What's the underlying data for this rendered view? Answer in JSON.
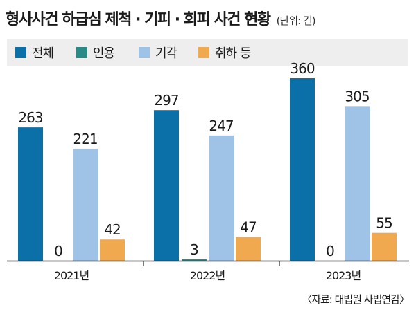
{
  "title": "형사사건 하급심 제척 · 기피 · 회피 사건 현황",
  "unit": "(단위: 건)",
  "source": "〈자료: 대법원 사법연감〉",
  "colors": {
    "전체": "#0b6fa8",
    "인용": "#2a8a86",
    "기각": "#9ec3e6",
    "취하 등": "#f0a94e"
  },
  "chart_data": {
    "type": "bar",
    "categories": [
      "2021년",
      "2022년",
      "2023년"
    ],
    "series": [
      {
        "name": "전체",
        "values": [
          263,
          297,
          360
        ]
      },
      {
        "name": "인용",
        "values": [
          0,
          3,
          0
        ]
      },
      {
        "name": "기각",
        "values": [
          221,
          247,
          305
        ]
      },
      {
        "name": "취하 등",
        "values": [
          42,
          47,
          55
        ]
      }
    ],
    "ylim": [
      0,
      360
    ],
    "grid": false,
    "legend": "top"
  }
}
